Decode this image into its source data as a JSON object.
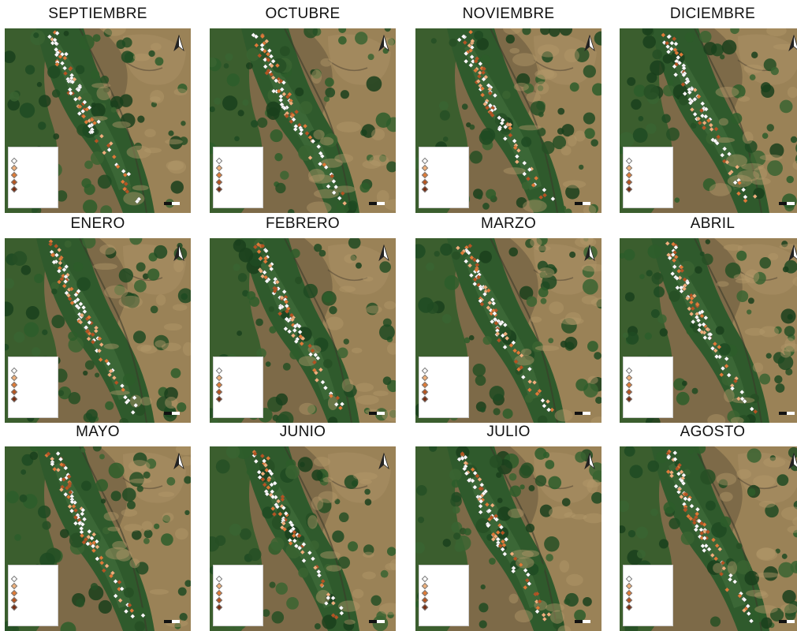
{
  "panels": [
    {
      "title": "SEPTIEMBRE"
    },
    {
      "title": "OCTUBRE"
    },
    {
      "title": "NOVIEMBRE"
    },
    {
      "title": "DICIEMBRE"
    },
    {
      "title": "ENERO"
    },
    {
      "title": "FEBRERO"
    },
    {
      "title": "MARZO"
    },
    {
      "title": "ABRIL"
    },
    {
      "title": "MAYO"
    },
    {
      "title": "JUNIO"
    },
    {
      "title": "JULIO"
    },
    {
      "title": "AGOSTO"
    }
  ],
  "colors": {
    "point_light": "#ffffff",
    "point_mid": "#f0b07a",
    "point_orange": "#e07b35",
    "point_dark": "#b5541f",
    "point_darkest": "#7a2e12",
    "vegetation": "#2f5a2c",
    "soil": "#8a7450"
  },
  "icons": {
    "north_arrow": "north-arrow-icon",
    "scale_bar": "scale-bar-icon"
  }
}
